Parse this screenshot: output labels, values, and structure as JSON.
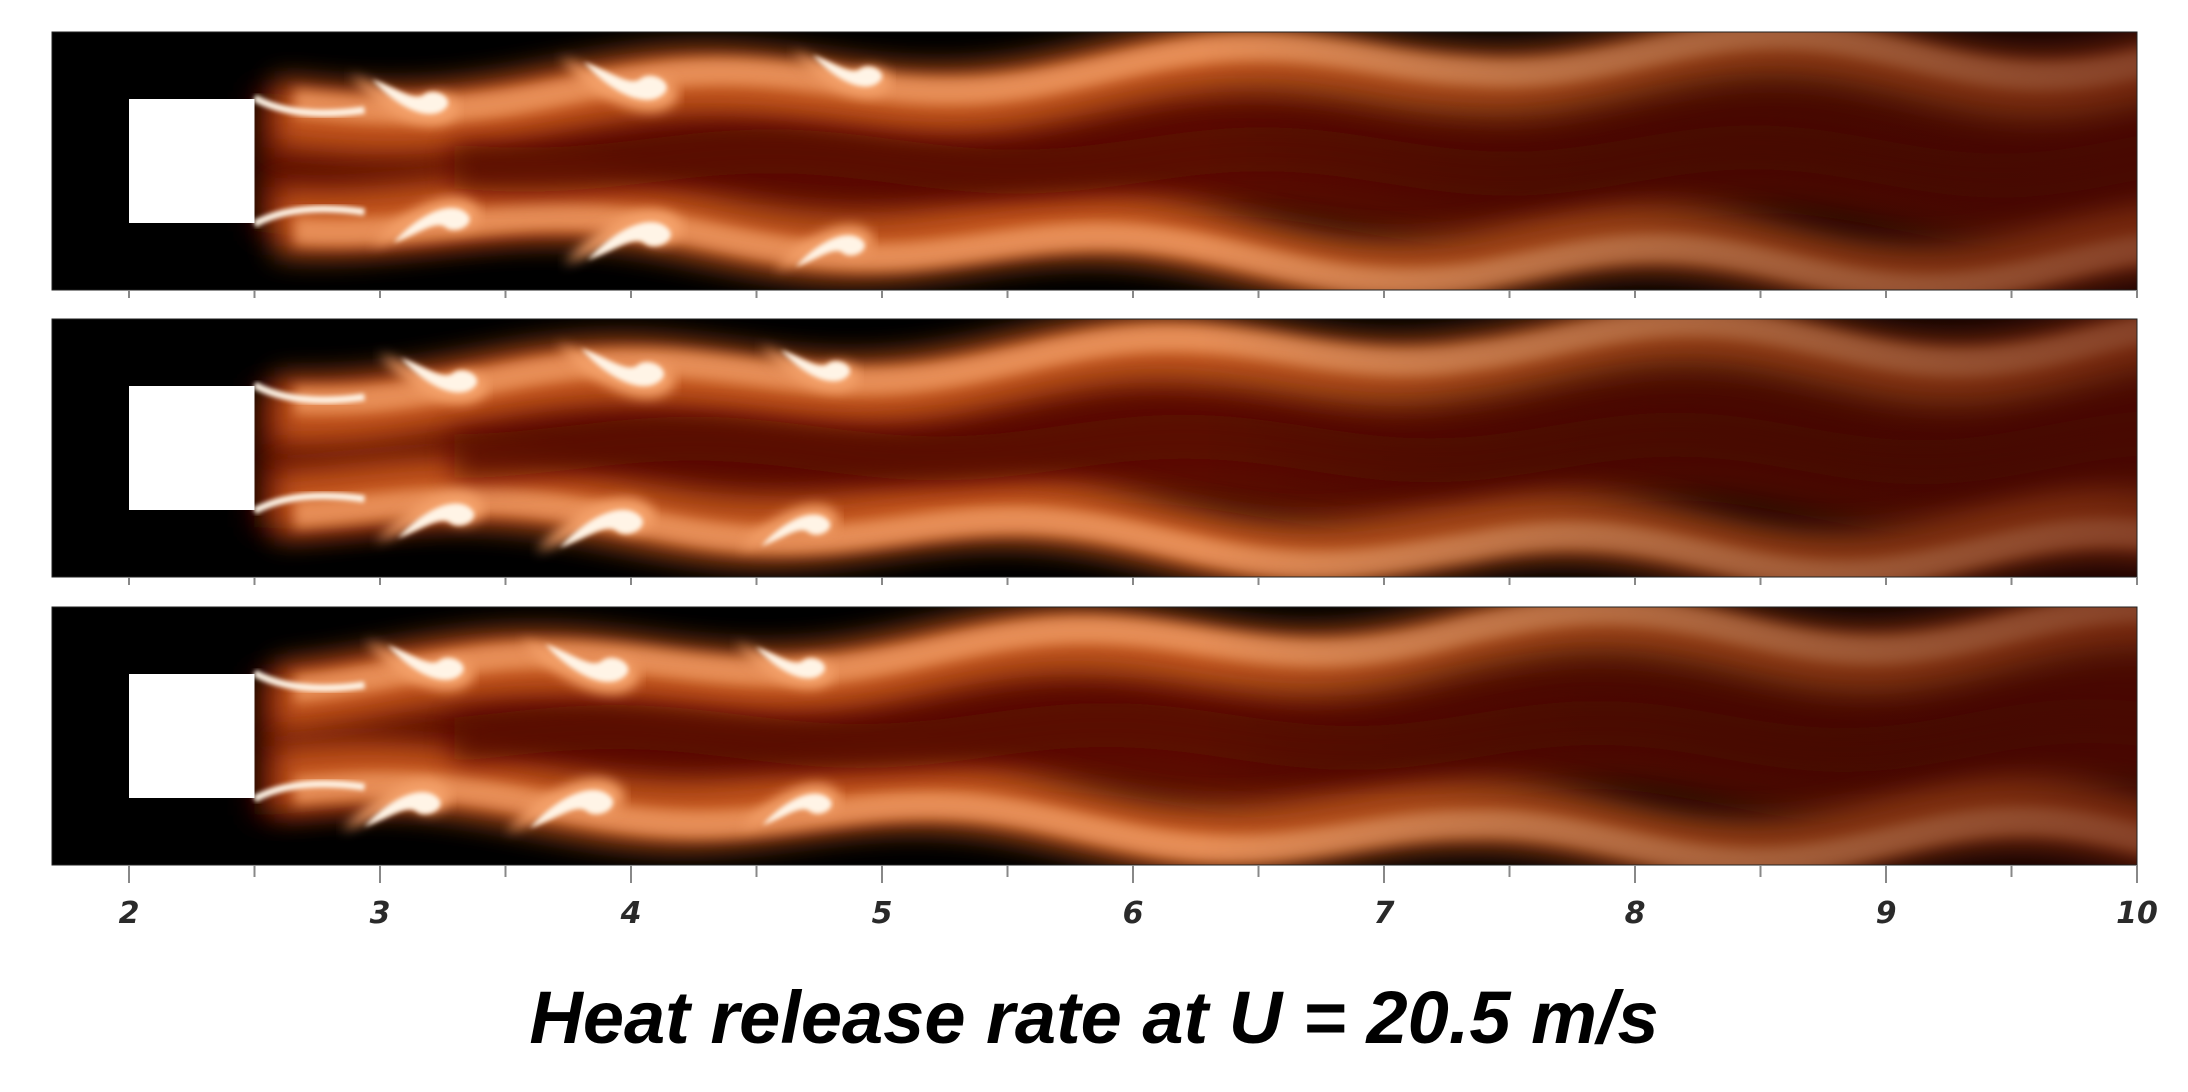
{
  "caption": "Heat release rate at U = 20.5 m/s",
  "colors": {
    "background": "#000000",
    "bluff_body": "#ffffff",
    "flame_dark": "#5a0a04",
    "flame_mid": "#c6571d",
    "flame_bright": "#f5a26a",
    "flame_peak": "#fff4e6",
    "axis": "#888888"
  },
  "axis": {
    "min": 2,
    "max": 10,
    "tick_labels": [
      "2",
      "3",
      "4",
      "5",
      "6",
      "7",
      "8",
      "9",
      "10"
    ],
    "minor_step": 0.5
  },
  "bluff_body_extent": {
    "x_start": 2.0,
    "x_end": 2.5
  },
  "panels": [
    {
      "name": "panel-1",
      "phase": 0.0
    },
    {
      "name": "panel-2",
      "phase": 1.0
    },
    {
      "name": "panel-3",
      "phase": 2.0
    }
  ]
}
